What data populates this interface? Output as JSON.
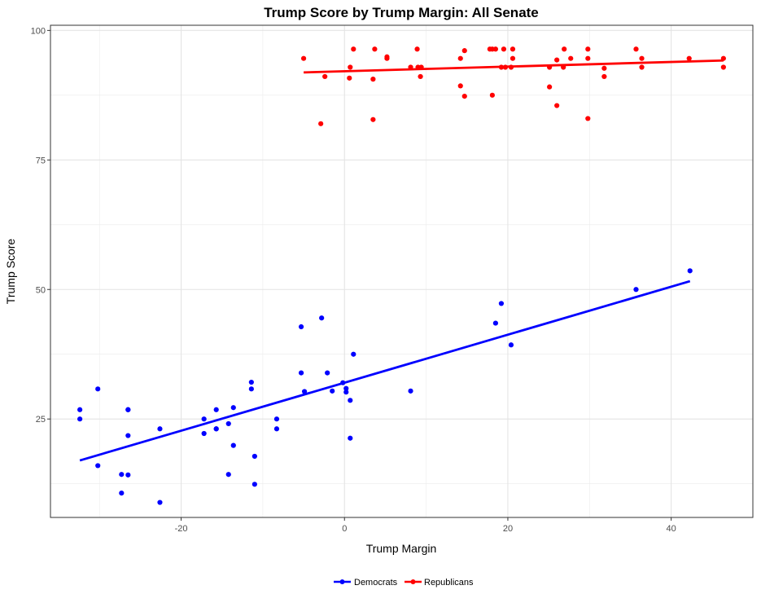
{
  "chart_data": {
    "type": "scatter",
    "title": "Trump Score by Trump Margin: All Senate",
    "xlabel": "Trump Margin",
    "ylabel": "Trump Score",
    "xlim": [
      -36,
      50
    ],
    "ylim": [
      6,
      101
    ],
    "x_ticks": [
      -20,
      0,
      20,
      40
    ],
    "y_ticks": [
      25,
      50,
      75,
      100
    ],
    "x_tick_labels": [
      "-20",
      "0",
      "20",
      "40"
    ],
    "y_tick_labels": [
      "25",
      "50",
      "75",
      "100"
    ],
    "grid": true,
    "legend_position": "bottom",
    "series": [
      {
        "name": "Democrats",
        "color": "#0000ff",
        "points": [
          [
            -32.4,
            26.8
          ],
          [
            -32.4,
            25.0
          ],
          [
            -30.2,
            30.8
          ],
          [
            -30.2,
            16.0
          ],
          [
            -27.3,
            14.3
          ],
          [
            -27.3,
            10.7
          ],
          [
            -26.5,
            26.8
          ],
          [
            -26.5,
            26.8
          ],
          [
            -26.5,
            21.8
          ],
          [
            -26.5,
            14.2
          ],
          [
            -22.6,
            23.1
          ],
          [
            -22.6,
            8.9
          ],
          [
            -17.2,
            25.0
          ],
          [
            -17.2,
            22.2
          ],
          [
            -15.7,
            26.8
          ],
          [
            -15.7,
            23.1
          ],
          [
            -15.7,
            23.1
          ],
          [
            -14.2,
            24.1
          ],
          [
            -14.2,
            14.3
          ],
          [
            -13.6,
            27.2
          ],
          [
            -13.6,
            19.9
          ],
          [
            -11.4,
            32.1
          ],
          [
            -11.4,
            30.8
          ],
          [
            -11.0,
            17.8
          ],
          [
            -11.0,
            12.4
          ],
          [
            -8.3,
            25.0
          ],
          [
            -8.3,
            23.1
          ],
          [
            -5.3,
            42.8
          ],
          [
            -5.3,
            33.9
          ],
          [
            -4.9,
            30.3
          ],
          [
            -2.8,
            44.5
          ],
          [
            -2.1,
            33.9
          ],
          [
            -1.5,
            30.4
          ],
          [
            -0.2,
            32.0
          ],
          [
            0.2,
            30.9
          ],
          [
            0.2,
            30.2
          ],
          [
            0.7,
            28.6
          ],
          [
            0.7,
            21.3
          ],
          [
            1.1,
            37.5
          ],
          [
            8.1,
            30.4
          ],
          [
            18.5,
            43.5
          ],
          [
            19.2,
            47.3
          ],
          [
            20.4,
            39.3
          ],
          [
            35.7,
            50.0
          ],
          [
            42.3,
            53.6
          ]
        ],
        "fit_line": [
          [
            -32.4,
            17.0
          ],
          [
            42.3,
            51.6
          ]
        ]
      },
      {
        "name": "Republicans",
        "color": "#ff0000",
        "points": [
          [
            -5.0,
            94.6
          ],
          [
            -2.9,
            82.0
          ],
          [
            -2.4,
            91.1
          ],
          [
            0.6,
            90.8
          ],
          [
            0.7,
            92.9
          ],
          [
            1.1,
            96.4
          ],
          [
            3.5,
            82.8
          ],
          [
            3.5,
            90.6
          ],
          [
            3.7,
            96.4
          ],
          [
            5.2,
            94.6
          ],
          [
            5.2,
            94.9
          ],
          [
            8.1,
            92.9
          ],
          [
            8.9,
            96.4
          ],
          [
            9.0,
            92.9
          ],
          [
            9.3,
            91.1
          ],
          [
            9.4,
            92.9
          ],
          [
            14.2,
            89.3
          ],
          [
            14.2,
            94.6
          ],
          [
            14.7,
            96.1
          ],
          [
            14.7,
            87.3
          ],
          [
            17.8,
            96.4
          ],
          [
            18.1,
            96.4
          ],
          [
            18.1,
            87.5
          ],
          [
            18.5,
            96.4
          ],
          [
            19.2,
            92.9
          ],
          [
            19.5,
            96.4
          ],
          [
            19.7,
            92.9
          ],
          [
            20.4,
            92.9
          ],
          [
            20.6,
            96.4
          ],
          [
            20.6,
            94.6
          ],
          [
            25.1,
            89.1
          ],
          [
            25.1,
            92.9
          ],
          [
            26.0,
            94.3
          ],
          [
            26.0,
            85.5
          ],
          [
            26.8,
            92.9
          ],
          [
            26.9,
            96.4
          ],
          [
            27.7,
            94.6
          ],
          [
            29.8,
            96.4
          ],
          [
            29.8,
            94.6
          ],
          [
            29.8,
            83.0
          ],
          [
            31.8,
            91.1
          ],
          [
            31.8,
            92.7
          ],
          [
            35.7,
            96.4
          ],
          [
            36.4,
            94.6
          ],
          [
            36.4,
            92.9
          ],
          [
            42.2,
            94.6
          ],
          [
            46.4,
            94.6
          ],
          [
            46.4,
            92.9
          ]
        ],
        "fit_line": [
          [
            -5.0,
            91.9
          ],
          [
            46.4,
            94.2
          ]
        ]
      }
    ]
  }
}
